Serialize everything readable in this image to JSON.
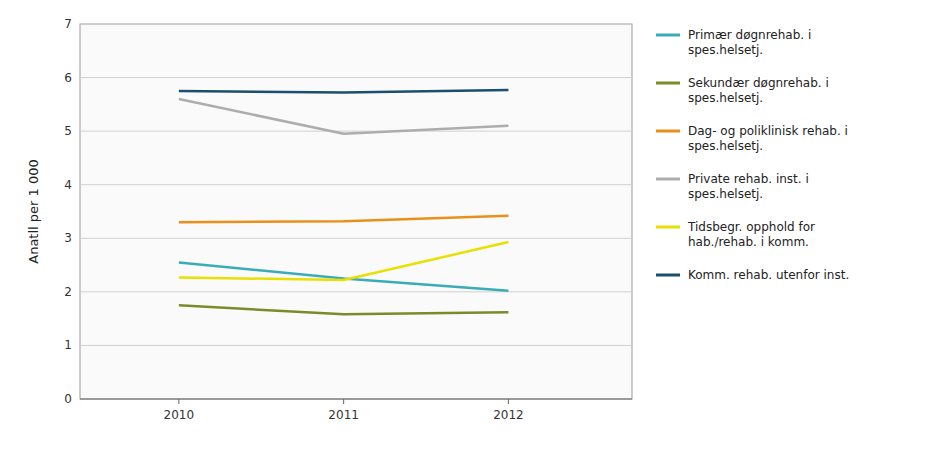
{
  "chart_data": {
    "type": "line",
    "x": [
      2010,
      2011,
      2012
    ],
    "xlim": [
      2009.4,
      2012.75
    ],
    "xticks": [
      2010,
      2011,
      2012
    ],
    "ylim": [
      0,
      7
    ],
    "yticks": [
      0,
      1,
      2,
      3,
      4,
      5,
      6,
      7
    ],
    "ylabel": "Anatll per 1 000",
    "grid": "y",
    "legend": "right",
    "series": [
      {
        "name": "Primær døgnrehab. i\nspes.helsetj.",
        "color": "#3AACB8",
        "values": [
          2.55,
          2.25,
          2.02
        ]
      },
      {
        "name": "Sekundær døgnrehab. i\nspes.helsetj.",
        "color": "#7B8B2A",
        "values": [
          1.75,
          1.58,
          1.62
        ]
      },
      {
        "name": "Dag- og poliklinisk rehab. i\nspes.helsetj.",
        "color": "#E8901A",
        "values": [
          3.3,
          3.32,
          3.42
        ]
      },
      {
        "name": "Private rehab. inst. i\nspes.helsetj.",
        "color": "#ADADAD",
        "values": [
          5.6,
          4.95,
          5.1
        ]
      },
      {
        "name": "Tidsbegr. opphold for\nhab./rehab. i komm.",
        "color": "#E8E000",
        "values": [
          2.27,
          2.22,
          2.93
        ]
      },
      {
        "name": "Komm. rehab. utenfor inst.",
        "color": "#1A4F6E",
        "values": [
          5.75,
          5.72,
          5.77
        ]
      }
    ]
  }
}
